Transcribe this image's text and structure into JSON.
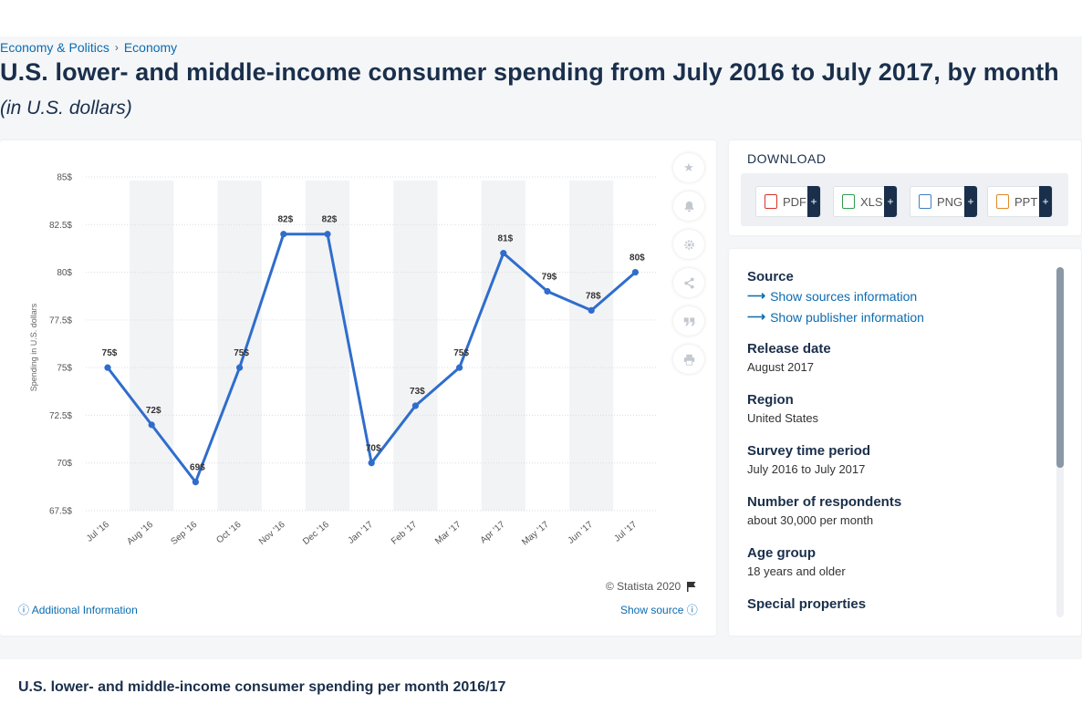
{
  "breadcrumb": {
    "items": [
      "Economy & Politics",
      "Economy"
    ],
    "separator": "›"
  },
  "title": "U.S. lower- and middle-income consumer spending from July 2016 to July 2017, by month",
  "subtitle": "(in U.S. dollars)",
  "chart_data": {
    "type": "line",
    "categories": [
      "Jul '16",
      "Aug '16",
      "Sep '16",
      "Oct '16",
      "Nov '16",
      "Dec '16",
      "Jan '17",
      "Feb '17",
      "Mar '17",
      "Apr '17",
      "May '17",
      "Jun '17",
      "Jul '17"
    ],
    "values": [
      75,
      72,
      69,
      75,
      82,
      82,
      70,
      73,
      75,
      81,
      79,
      78,
      80
    ],
    "data_labels": [
      "75$",
      "72$",
      "69$",
      "75$",
      "82$",
      "82$",
      "70$",
      "73$",
      "75$",
      "81$",
      "79$",
      "78$",
      "80$"
    ],
    "ylabel": "Spending in U.S. dollars",
    "ylim": [
      67.5,
      85
    ],
    "yticks": [
      85,
      82.5,
      80,
      77.5,
      75,
      72.5,
      70,
      67.5
    ],
    "ytick_labels": [
      "85$",
      "82.5$",
      "80$",
      "77.5$",
      "75$",
      "72.5$",
      "70$",
      "67.5$"
    ],
    "grid": true,
    "line_color": "#2f6dcc",
    "band_color": "#f2f3f5"
  },
  "chart_card": {
    "credit": "© Statista 2020",
    "additional_info": "Additional Information",
    "show_source": "Show source"
  },
  "tools": [
    "star-icon",
    "bell-icon",
    "gear-icon",
    "share-icon",
    "quote-icon",
    "print-icon"
  ],
  "download": {
    "title": "DOWNLOAD",
    "buttons": [
      {
        "label": "PDF",
        "color": "#d9322b"
      },
      {
        "label": "XLS",
        "color": "#2e9a4a"
      },
      {
        "label": "PNG",
        "color": "#3f7fc7"
      },
      {
        "label": "PPT",
        "color": "#e2892a"
      }
    ],
    "plus": "+"
  },
  "info": {
    "source_heading": "Source",
    "show_sources": "Show sources information",
    "show_publisher": "Show publisher information",
    "release_heading": "Release date",
    "release_value": "August 2017",
    "region_heading": "Region",
    "region_value": "United States",
    "period_heading": "Survey time period",
    "period_value": "July 2016 to July 2017",
    "respondents_heading": "Number of respondents",
    "respondents_value": "about 30,000 per month",
    "age_heading": "Age group",
    "age_value": "18 years and older",
    "special_heading": "Special properties"
  },
  "bottom": {
    "title": "U.S. lower- and middle-income consumer spending per month 2016/17"
  }
}
